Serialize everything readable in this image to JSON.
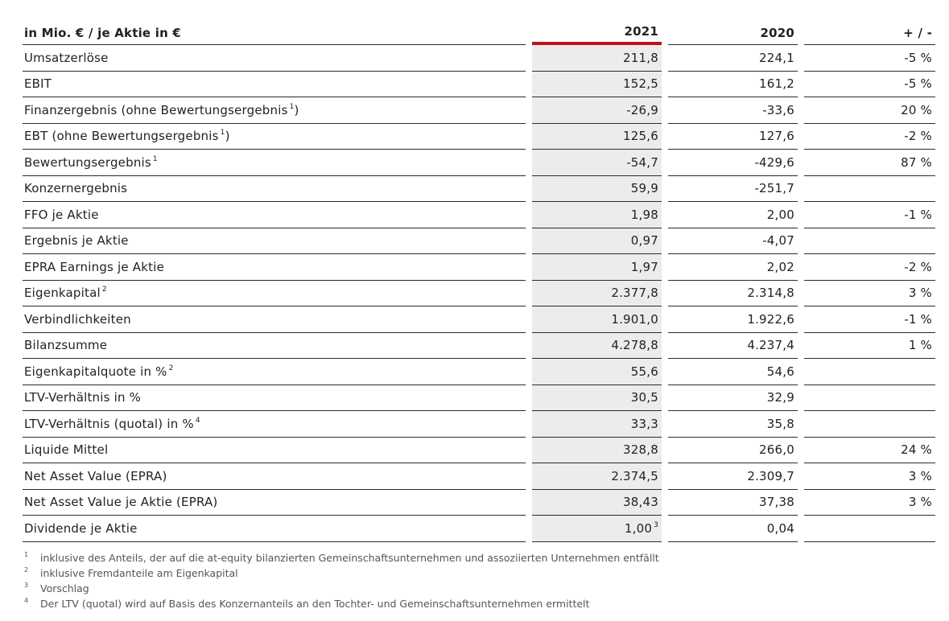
{
  "header": {
    "label": "in Mio. € / je Aktie in €",
    "col_2021": "2021",
    "col_2020": "2020",
    "col_change": "+ / -"
  },
  "rows": [
    {
      "label": "Umsatzerlöse",
      "sup": "",
      "v2021": "211,8",
      "v2021_sup": "",
      "v2020": "224,1",
      "change": "-5 %"
    },
    {
      "label": "EBIT",
      "sup": "",
      "v2021": "152,5",
      "v2021_sup": "",
      "v2020": "161,2",
      "change": "-5 %"
    },
    {
      "label": "Finanzergebnis (ohne Bewertungsergebnis",
      "sup": "1",
      "label_suffix": ")",
      "v2021": "-26,9",
      "v2021_sup": "",
      "v2020": "-33,6",
      "change": "20 %"
    },
    {
      "label": "EBT (ohne Bewertungsergebnis",
      "sup": "1",
      "label_suffix": ")",
      "v2021": "125,6",
      "v2021_sup": "",
      "v2020": "127,6",
      "change": "-2 %"
    },
    {
      "label": "Bewertungsergebnis",
      "sup": "1",
      "v2021": "-54,7",
      "v2021_sup": "",
      "v2020": "-429,6",
      "change": "87 %"
    },
    {
      "label": "Konzernergebnis",
      "sup": "",
      "v2021": "59,9",
      "v2021_sup": "",
      "v2020": "-251,7",
      "change": ""
    },
    {
      "label": "FFO je Aktie",
      "sup": "",
      "v2021": "1,98",
      "v2021_sup": "",
      "v2020": "2,00",
      "change": "-1 %"
    },
    {
      "label": "Ergebnis je Aktie",
      "sup": "",
      "v2021": "0,97",
      "v2021_sup": "",
      "v2020": "-4,07",
      "change": ""
    },
    {
      "label": "EPRA Earnings je Aktie",
      "sup": "",
      "v2021": "1,97",
      "v2021_sup": "",
      "v2020": "2,02",
      "change": "-2 %"
    },
    {
      "label": "Eigenkapital",
      "sup": "2",
      "v2021": "2.377,8",
      "v2021_sup": "",
      "v2020": "2.314,8",
      "change": "3 %"
    },
    {
      "label": "Verbindlichkeiten",
      "sup": "",
      "v2021": "1.901,0",
      "v2021_sup": "",
      "v2020": "1.922,6",
      "change": "-1 %"
    },
    {
      "label": "Bilanzsumme",
      "sup": "",
      "v2021": "4.278,8",
      "v2021_sup": "",
      "v2020": "4.237,4",
      "change": "1 %"
    },
    {
      "label": "Eigenkapitalquote in %",
      "sup": "2",
      "v2021": "55,6",
      "v2021_sup": "",
      "v2020": "54,6",
      "change": ""
    },
    {
      "label": "LTV-Verhältnis in %",
      "sup": "",
      "v2021": "30,5",
      "v2021_sup": "",
      "v2020": "32,9",
      "change": ""
    },
    {
      "label": "LTV-Verhältnis (quotal) in %",
      "sup": "4",
      "v2021": "33,3",
      "v2021_sup": "",
      "v2020": "35,8",
      "change": ""
    },
    {
      "label": "Liquide Mittel",
      "sup": "",
      "v2021": "328,8",
      "v2021_sup": "",
      "v2020": "266,0",
      "change": "24 %"
    },
    {
      "label": "Net Asset Value (EPRA)",
      "sup": "",
      "v2021": "2.374,5",
      "v2021_sup": "",
      "v2020": "2.309,7",
      "change": "3 %"
    },
    {
      "label": "Net Asset Value je Aktie (EPRA)",
      "sup": "",
      "v2021": "38,43",
      "v2021_sup": "",
      "v2020": "37,38",
      "change": "3 %"
    },
    {
      "label": "Dividende je Aktie",
      "sup": "",
      "v2021": "1,00",
      "v2021_sup": "3",
      "v2020": "0,04",
      "change": ""
    }
  ],
  "footnotes": [
    {
      "num": "1",
      "text": "inklusive des Anteils, der auf die at-equity bilanzierten Gemeinschaftsunternehmen und assoziierten Unternehmen entfällt"
    },
    {
      "num": "2",
      "text": "inklusive Fremdanteile am Eigenkapital"
    },
    {
      "num": "3",
      "text": "Vorschlag"
    },
    {
      "num": "4",
      "text": "Der LTV (quotal) wird auf Basis des Konzernanteils an den Tochter- und Gemeinschaftsunternehmen ermittelt"
    }
  ],
  "colors": {
    "accent_2021": "#c0121c",
    "highlight_column": "#ececec",
    "rule": "#2b2b2b"
  }
}
